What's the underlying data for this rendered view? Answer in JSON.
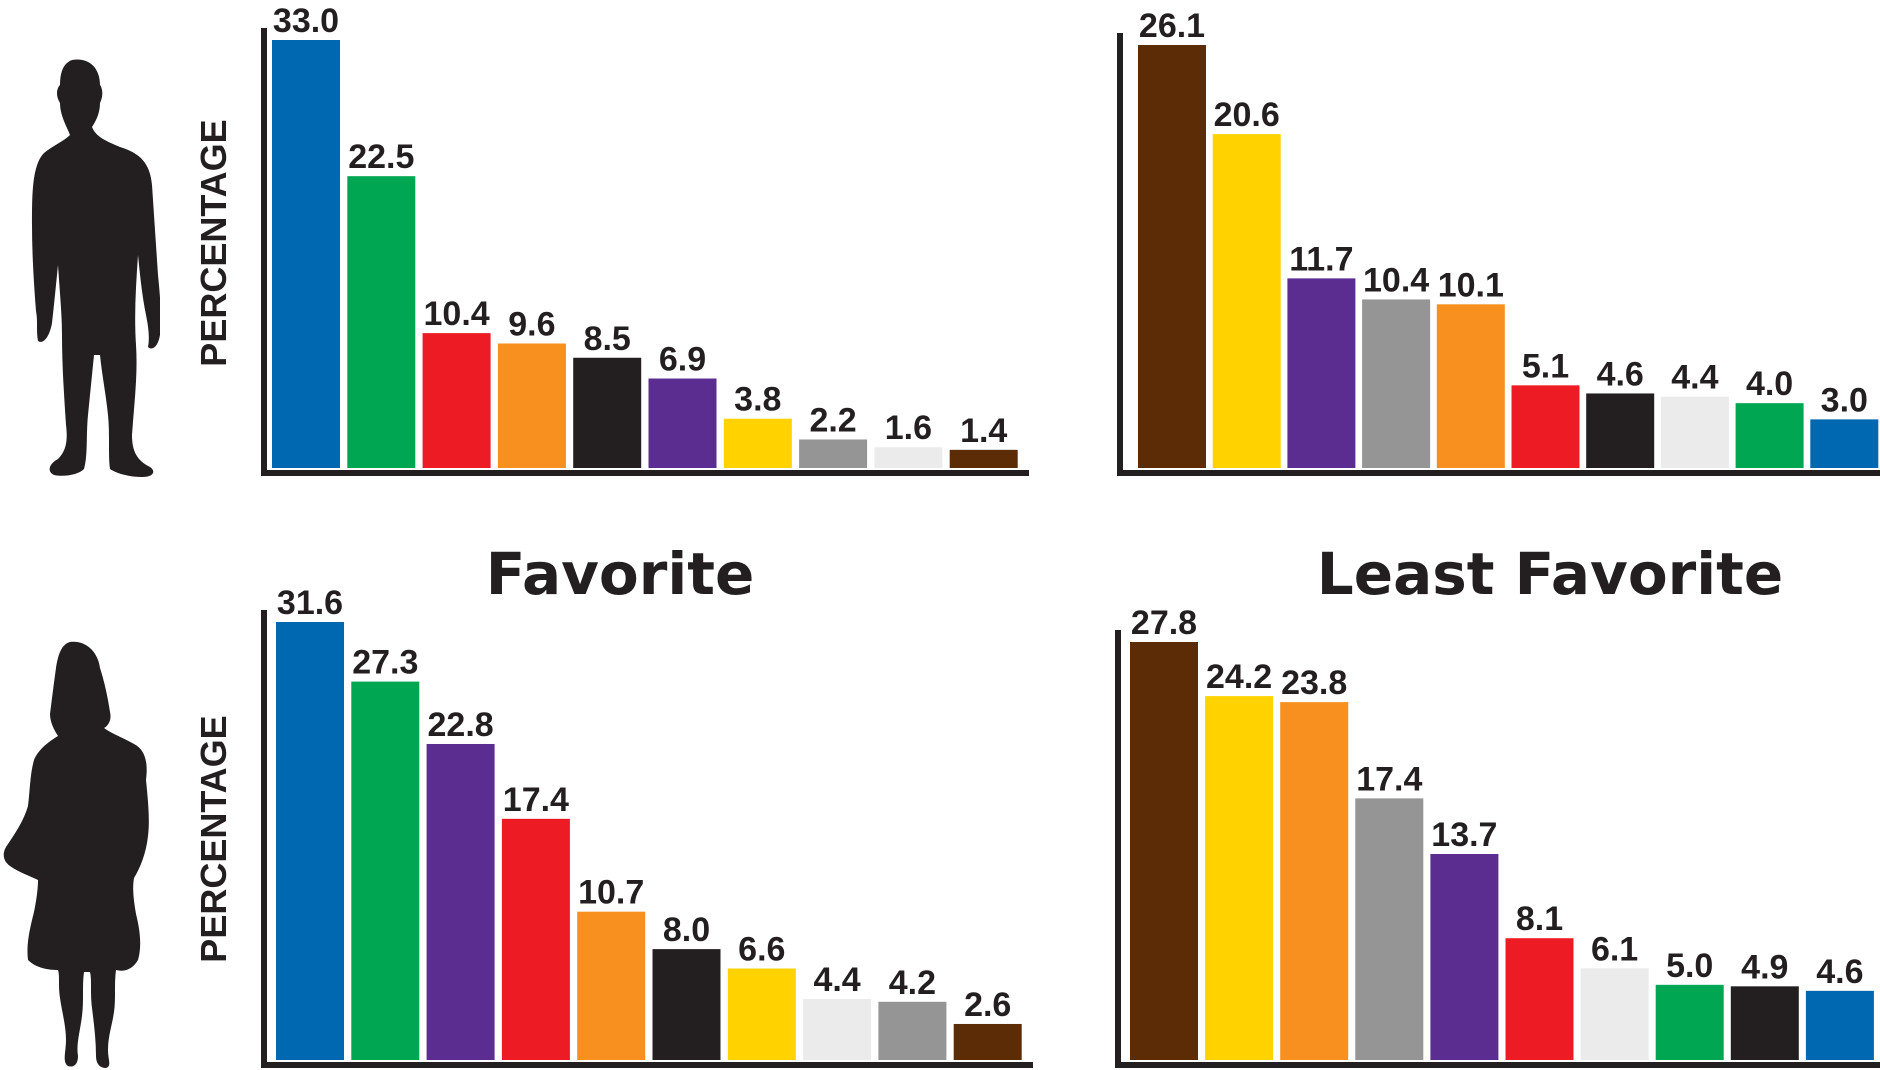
{
  "headings": {
    "favorite": "Favorite",
    "least_favorite": "Least Favorite"
  },
  "icons": {
    "male": "man-silhouette-icon",
    "female": "woman-silhouette-icon"
  },
  "colors": {
    "blue": "#0067b1",
    "green": "#00a651",
    "red": "#ed1c24",
    "orange": "#f7901e",
    "black": "#231f20",
    "purple": "#5c2d91",
    "yellow": "#ffd200",
    "gray": "#959595",
    "lightgray": "#ebebeb",
    "brown": "#5b2c06"
  },
  "chart_data": [
    {
      "type": "bar",
      "panel": "male-favorite",
      "ylabel": "PERCENTAGE",
      "values": [
        33.0,
        22.5,
        10.4,
        9.6,
        8.5,
        6.9,
        3.8,
        2.2,
        1.6,
        1.4
      ],
      "labels": [
        "33.0",
        "22.5",
        "10.4",
        "9.6",
        "8.5",
        "6.9",
        "3.8",
        "2.2",
        "1.6",
        "1.4"
      ],
      "colors": [
        "#0067b1",
        "#00a651",
        "#ed1c24",
        "#f7901e",
        "#231f20",
        "#5c2d91",
        "#ffd200",
        "#959595",
        "#ebebeb",
        "#5b2c06"
      ],
      "ylim": [
        0,
        34
      ]
    },
    {
      "type": "bar",
      "panel": "male-least-favorite",
      "ylabel": "",
      "values": [
        26.1,
        20.6,
        11.7,
        10.4,
        10.1,
        5.1,
        4.6,
        4.4,
        4.0,
        3.0
      ],
      "labels": [
        "26.1",
        "20.6",
        "11.7",
        "10.4",
        "10.1",
        "5.1",
        "4.6",
        "4.4",
        "4.0",
        "3.0"
      ],
      "colors": [
        "#5b2c06",
        "#ffd200",
        "#5c2d91",
        "#959595",
        "#f7901e",
        "#ed1c24",
        "#231f20",
        "#ebebeb",
        "#00a651",
        "#0067b1"
      ],
      "ylim": [
        0,
        27
      ]
    },
    {
      "type": "bar",
      "panel": "female-favorite",
      "ylabel": "PERCENTAGE",
      "values": [
        31.6,
        27.3,
        22.8,
        17.4,
        10.7,
        8.0,
        6.6,
        4.4,
        4.2,
        2.6
      ],
      "labels": [
        "31.6",
        "27.3",
        "22.8",
        "17.4",
        "10.7",
        "8.0",
        "6.6",
        "4.4",
        "4.2",
        "2.6"
      ],
      "colors": [
        "#0067b1",
        "#00a651",
        "#5c2d91",
        "#ed1c24",
        "#f7901e",
        "#231f20",
        "#ffd200",
        "#ebebeb",
        "#959595",
        "#5b2c06"
      ],
      "ylim": [
        0,
        32
      ]
    },
    {
      "type": "bar",
      "panel": "female-least-favorite",
      "ylabel": "",
      "values": [
        27.8,
        24.2,
        23.8,
        17.4,
        13.7,
        8.1,
        6.1,
        5.0,
        4.9,
        4.6
      ],
      "labels": [
        "27.8",
        "24.2",
        "23.8",
        "17.4",
        "13.7",
        "8.1",
        "6.1",
        "5.0",
        "4.9",
        "4.6"
      ],
      "colors": [
        "#5b2c06",
        "#ffd200",
        "#f7901e",
        "#959595",
        "#5c2d91",
        "#ed1c24",
        "#ebebeb",
        "#00a651",
        "#231f20",
        "#0067b1"
      ],
      "ylim": [
        0,
        29
      ]
    }
  ]
}
